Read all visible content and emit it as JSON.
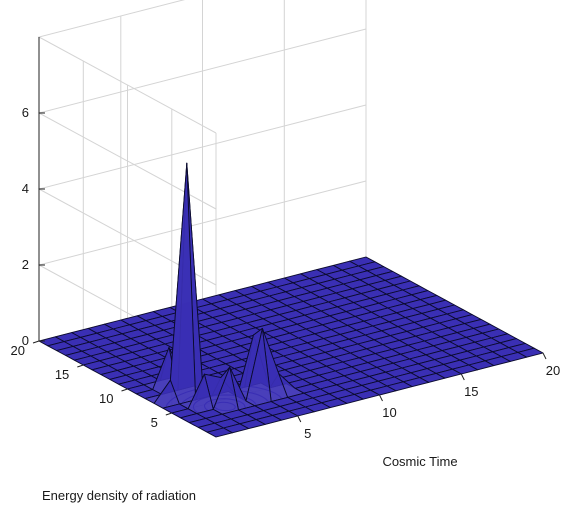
{
  "chart_data": {
    "type": "surface",
    "title": "",
    "xlabel": "Cosmic Time",
    "ylabel": "",
    "zlabel": "Energy density of radiation",
    "xlim": [
      0,
      20
    ],
    "ylim": [
      0,
      20
    ],
    "zlim": [
      0,
      8
    ],
    "x_ticks": [
      "5",
      "10",
      "15",
      "20"
    ],
    "y_ticks": [
      "5",
      "10",
      "15",
      "20"
    ],
    "z_ticks": [
      "0",
      "2",
      "4",
      "6"
    ],
    "grid": true,
    "contour_on_floor": true,
    "colors": {
      "surface": "#3a2fb4",
      "edges": "#0b0b2e",
      "contour": "#3a2fb4",
      "grid": "#d4d4d4"
    },
    "grid_size": 21,
    "peaks": [
      {
        "x": 2,
        "y": 7,
        "height": 6.1
      },
      {
        "x": 3,
        "y": 4,
        "height": 1.0
      },
      {
        "x": 5,
        "y": 4,
        "height": 1.8
      },
      {
        "x": 5,
        "y": 5,
        "height": 1.5
      },
      {
        "x": 3,
        "y": 5,
        "height": 0.6
      },
      {
        "x": 2,
        "y": 5,
        "height": 0.8
      },
      {
        "x": 2,
        "y": 9,
        "height": 1.0
      },
      {
        "x": 6,
        "y": 4,
        "height": 0.5
      },
      {
        "x": 1,
        "y": 7,
        "height": 0.5
      }
    ]
  }
}
